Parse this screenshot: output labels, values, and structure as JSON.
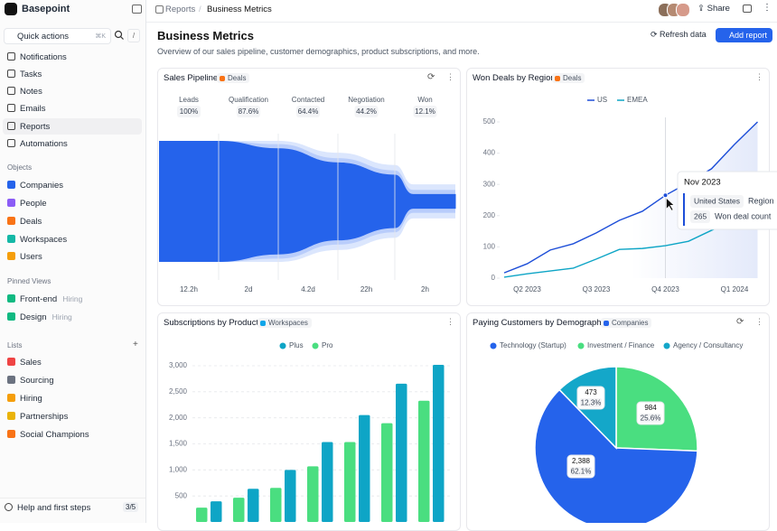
{
  "sidebar": {
    "brand": "Basepoint",
    "quick_actions": "Quick actions",
    "shortcut": "⌘K",
    "slash": "/",
    "nav": [
      "Notifications",
      "Tasks",
      "Notes",
      "Emails",
      "Reports",
      "Automations"
    ],
    "sections": [
      {
        "title": "Objects",
        "items": [
          {
            "label": "Companies"
          },
          {
            "label": "People"
          },
          {
            "label": "Deals"
          },
          {
            "label": "Workspaces"
          },
          {
            "label": "Users"
          }
        ]
      },
      {
        "title": "Pinned Views",
        "items": [
          {
            "label": "Front-end",
            "tag": "Hiring"
          },
          {
            "label": "Design",
            "tag": "Hiring"
          }
        ]
      },
      {
        "title": "Lists",
        "items": [
          {
            "label": "Sales"
          },
          {
            "label": "Sourcing"
          },
          {
            "label": "Hiring"
          },
          {
            "label": "Partnerships"
          },
          {
            "label": "Social Champions"
          }
        ]
      }
    ],
    "footer": {
      "label": "Help and first steps",
      "progress": "3/5"
    }
  },
  "topbar": {
    "breadcrumb": [
      "Reports",
      "Business Metrics"
    ],
    "share": "Share"
  },
  "header": {
    "title": "Business Metrics",
    "subtitle": "Overview of our sales pipeline, customer demographics, product subscriptions, and more.",
    "refresh": "Refresh data",
    "add": "Add report"
  },
  "chart_data": [
    {
      "type": "funnel",
      "title": "Sales Pipeline",
      "tag": "Deals",
      "categories": [
        "Leads",
        "Qualification",
        "Contacted",
        "Negotiation",
        "Won"
      ],
      "values": [
        100,
        87.6,
        64.4,
        44.2,
        12.1
      ],
      "value_labels": [
        "100%",
        "87.6%",
        "64.4%",
        "44.2%",
        "12.1%"
      ],
      "durations": [
        "12.2h",
        "2d",
        "4.2d",
        "22h",
        "2h"
      ],
      "ylim": [
        0,
        100
      ],
      "color": "#2563eb"
    },
    {
      "type": "line",
      "title": "Won Deals by Region",
      "tag": "Deals",
      "categories": [
        null,
        "Q2 2023",
        null,
        null,
        "Q3 2023",
        null,
        null,
        "Q4 2023",
        null,
        null,
        "Q1 2024",
        null
      ],
      "series": [
        {
          "name": "US",
          "color": "#1d4ed8",
          "values": [
            17,
            46,
            90,
            110,
            145,
            185,
            214,
            265,
            306,
            350,
            428,
            500
          ]
        },
        {
          "name": "EMEA",
          "color": "#0ea5c6",
          "values": [
            3,
            14,
            23,
            32,
            61,
            92,
            95,
            104,
            118,
            153,
            185,
            240
          ]
        }
      ],
      "ylim": [
        0,
        500
      ],
      "yticks": [
        0,
        100,
        200,
        300,
        400,
        500
      ],
      "tooltip": {
        "title": "Nov 2023",
        "label": "United States",
        "dimension": "Region",
        "measure": "Won deal count"
      }
    },
    {
      "type": "bar",
      "title": "Subscriptions by Product",
      "tag": "Workspaces",
      "categories": [
        null,
        null,
        null,
        null,
        null,
        null,
        null
      ],
      "series": [
        {
          "name": "Plus",
          "color": "#0ea5c6",
          "values": [
            397,
            638,
            1000,
            1534,
            2052,
            2655,
            3017
          ]
        },
        {
          "name": "Pro",
          "color": "#4ade80",
          "values": [
            276,
            466,
            655,
            1069,
            1534,
            1897,
            2328
          ]
        }
      ],
      "ylim": [
        0,
        3000
      ],
      "yticks": [
        {
          "value": 500,
          "label": "500"
        },
        {
          "value": 1000,
          "label": "1,000"
        },
        {
          "value": 1500,
          "label": "1,500"
        },
        {
          "value": 2000,
          "label": "2,000"
        },
        {
          "value": 2500,
          "label": "2,500"
        },
        {
          "value": 3000,
          "label": "3,000"
        }
      ]
    },
    {
      "type": "pie",
      "title": "Paying Customers by Demographic",
      "tag": "Companies",
      "categories": [
        "Technology (Startup)",
        "Investment / Finance",
        "Agency / Consultancy"
      ],
      "values": [
        2388,
        984,
        473
      ],
      "value_labels": [
        "2,388",
        "984",
        "473"
      ],
      "percent_labels": [
        "62.1%",
        "25.6%",
        "12.3%"
      ],
      "colors": [
        "#2563eb",
        "#4ade80",
        "#14a7c9"
      ]
    }
  ]
}
